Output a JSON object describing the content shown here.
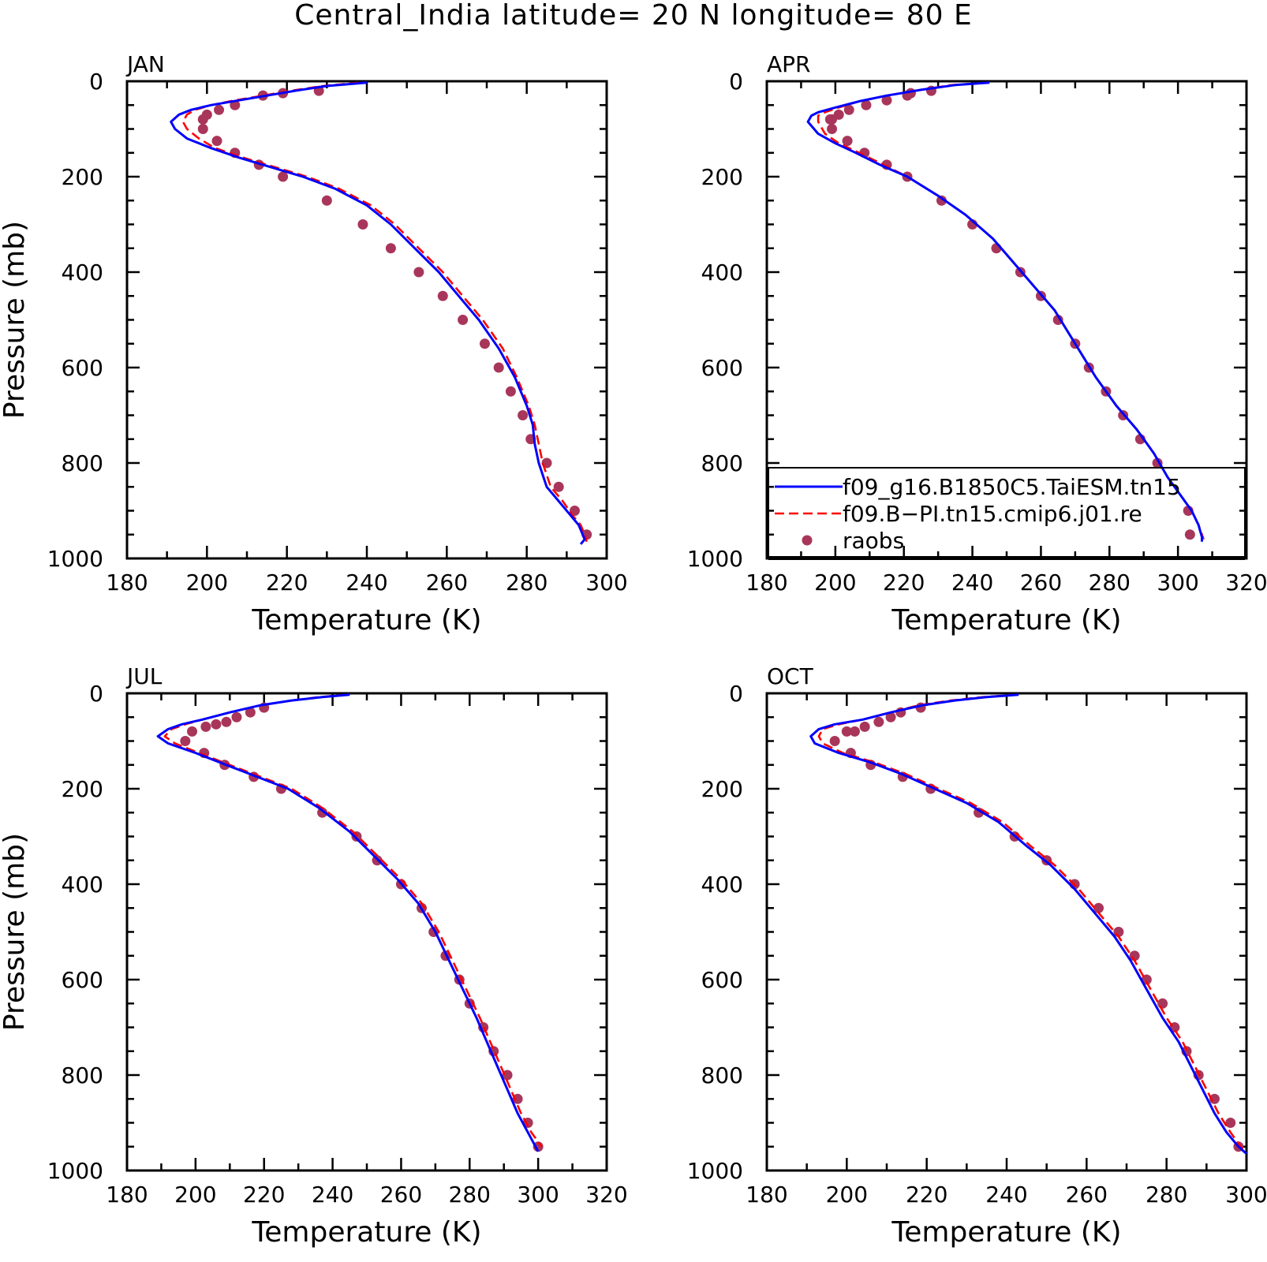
{
  "title": "Central_India  latitude= 20 N longitude= 80 E",
  "colors": {
    "model1": "#0000ff",
    "model2": "#ff0000",
    "obs": "#a8365a",
    "axis": "#000000"
  },
  "legend": {
    "entries": [
      {
        "label": "f09_g16.B1850C5.TaiESM.tn15",
        "style": "solid",
        "color": "#0000ff"
      },
      {
        "label": "f09.B−PI.tn15.cmip6.j01.re",
        "style": "dashed",
        "color": "#ff0000"
      },
      {
        "label": "raobs",
        "style": "marker",
        "color": "#a8365a"
      }
    ],
    "panel": "APR",
    "placement": "bottom-right"
  },
  "chart_data": [
    {
      "type": "line",
      "panel_label": "JAN",
      "xlabel": "Temperature (K)",
      "ylabel": "Pressure (mb)",
      "xlim": [
        180,
        300
      ],
      "ylim": [
        1000,
        0
      ],
      "xticks": [
        180,
        200,
        220,
        240,
        260,
        280,
        300
      ],
      "yticks": [
        0,
        200,
        400,
        600,
        800,
        1000
      ],
      "series": [
        {
          "name": "f09_g16.B1850C5.TaiESM.tn15",
          "style": "solid",
          "x": [
            240,
            230,
            222,
            215,
            208,
            201,
            196,
            193,
            191,
            192,
            195,
            201,
            208,
            216,
            224,
            232,
            240,
            246,
            252,
            258,
            263,
            268,
            273,
            277,
            280,
            281.5,
            282,
            283,
            285,
            288,
            291,
            293,
            294,
            294.5,
            293.5
          ],
          "y": [
            3,
            10,
            20,
            30,
            40,
            50,
            60,
            70,
            85,
            100,
            120,
            140,
            160,
            180,
            200,
            225,
            260,
            300,
            350,
            400,
            450,
            500,
            560,
            620,
            680,
            720,
            760,
            800,
            850,
            880,
            910,
            930,
            950,
            960,
            970
          ]
        },
        {
          "name": "f09.B−PI.tn15.cmip6.j01.re",
          "style": "dashed",
          "x": [
            238,
            229,
            221,
            214,
            207,
            201,
            197,
            195,
            194,
            195,
            198,
            202,
            209,
            217,
            225,
            233,
            241,
            247,
            253,
            259,
            264,
            269,
            274,
            277.5,
            280.5,
            282,
            283,
            284,
            286,
            289,
            291.5,
            293.5,
            294.5,
            295
          ],
          "y": [
            3,
            10,
            20,
            30,
            40,
            50,
            60,
            70,
            85,
            100,
            120,
            140,
            160,
            180,
            200,
            225,
            260,
            300,
            350,
            400,
            450,
            500,
            560,
            620,
            680,
            720,
            760,
            800,
            850,
            880,
            910,
            930,
            950,
            965
          ]
        },
        {
          "name": "raobs",
          "style": "marker",
          "x": [
            228,
            219,
            214,
            207,
            203,
            200,
            199,
            199,
            202.5,
            207,
            213,
            219,
            230,
            239,
            246,
            253,
            259,
            264,
            269.5,
            273,
            276,
            279,
            281,
            285,
            288,
            292,
            295
          ],
          "y": [
            20,
            25,
            30,
            50,
            60,
            70,
            80,
            100,
            125,
            150,
            175,
            200,
            250,
            300,
            350,
            400,
            450,
            500,
            550,
            600,
            650,
            700,
            750,
            800,
            850,
            900,
            950
          ]
        }
      ]
    },
    {
      "type": "line",
      "panel_label": "APR",
      "xlabel": "Temperature (K)",
      "ylabel": "",
      "xlim": [
        180,
        320
      ],
      "ylim": [
        1000,
        0
      ],
      "xticks": [
        180,
        200,
        220,
        240,
        260,
        280,
        300,
        320
      ],
      "yticks": [
        0,
        200,
        400,
        600,
        800,
        1000
      ],
      "series": [
        {
          "name": "f09_g16.B1850C5.TaiESM.tn15",
          "style": "solid",
          "x": [
            245,
            235,
            225,
            215,
            207,
            200,
            195,
            193,
            192,
            195,
            200,
            206,
            213,
            221,
            230,
            238,
            246,
            252,
            258,
            264,
            270,
            276,
            282,
            288,
            293,
            297,
            301,
            304,
            306,
            307,
            307
          ],
          "y": [
            3,
            8,
            18,
            30,
            42,
            55,
            65,
            72,
            85,
            110,
            130,
            150,
            175,
            200,
            240,
            280,
            330,
            380,
            430,
            480,
            550,
            620,
            680,
            730,
            780,
            830,
            870,
            900,
            930,
            955,
            965
          ]
        },
        {
          "name": "f09.B−PI.tn15.cmip6.j01.re",
          "style": "dashed",
          "x": [
            244,
            234,
            225,
            215,
            207,
            201,
            197,
            195,
            195,
            197,
            201,
            207,
            214,
            221,
            230,
            238,
            246,
            252,
            258,
            264,
            270,
            276,
            282,
            288,
            293,
            297,
            301,
            304,
            306,
            307.5
          ],
          "y": [
            3,
            8,
            18,
            30,
            42,
            55,
            65,
            72,
            85,
            110,
            130,
            150,
            175,
            200,
            240,
            280,
            330,
            380,
            430,
            480,
            550,
            620,
            680,
            730,
            780,
            830,
            870,
            900,
            930,
            960
          ]
        },
        {
          "name": "raobs",
          "style": "marker",
          "x": [
            228,
            222,
            221,
            215,
            209,
            204,
            201,
            199,
            198.5,
            199,
            203.5,
            208.5,
            215,
            221,
            231,
            240,
            247,
            254,
            260,
            265,
            270,
            274,
            279,
            284,
            289,
            294,
            303,
            303.5
          ],
          "y": [
            20,
            25,
            30,
            40,
            50,
            60,
            70,
            80,
            80,
            100,
            125,
            150,
            175,
            200,
            250,
            300,
            350,
            400,
            450,
            500,
            550,
            600,
            650,
            700,
            750,
            800,
            900,
            950
          ]
        }
      ]
    },
    {
      "type": "line",
      "panel_label": "JUL",
      "xlabel": "Temperature (K)",
      "ylabel": "Pressure (mb)",
      "xlim": [
        180,
        320
      ],
      "ylim": [
        1000,
        0
      ],
      "xticks": [
        180,
        200,
        220,
        240,
        260,
        280,
        300,
        320
      ],
      "yticks": [
        0,
        200,
        400,
        600,
        800,
        1000
      ],
      "series": [
        {
          "name": "f09_g16.B1850C5.TaiESM.tn15",
          "style": "solid",
          "x": [
            245,
            237,
            228,
            219,
            210,
            202,
            196,
            192,
            189,
            192,
            200,
            209,
            218,
            227,
            236,
            245,
            252,
            259,
            265,
            270,
            274,
            278,
            282,
            285,
            288,
            291,
            294,
            297,
            300
          ],
          "y": [
            3,
            8,
            15,
            25,
            40,
            55,
            65,
            75,
            90,
            105,
            125,
            150,
            175,
            200,
            240,
            290,
            340,
            390,
            440,
            500,
            560,
            620,
            680,
            730,
            780,
            830,
            880,
            920,
            960
          ]
        },
        {
          "name": "f09.B−PI.tn15.cmip6.j01.re",
          "style": "dashed",
          "x": [
            244,
            236,
            228,
            219,
            210,
            202,
            197,
            193,
            191,
            194,
            201,
            210,
            219,
            228,
            237,
            246,
            253,
            260,
            266,
            271,
            275,
            279,
            283,
            286,
            289,
            292,
            295,
            298,
            301
          ],
          "y": [
            3,
            8,
            15,
            25,
            40,
            55,
            65,
            75,
            90,
            105,
            125,
            150,
            175,
            200,
            240,
            290,
            340,
            390,
            440,
            500,
            560,
            620,
            680,
            730,
            780,
            830,
            880,
            920,
            950
          ]
        },
        {
          "name": "raobs",
          "style": "marker",
          "x": [
            220,
            216,
            212,
            209,
            206,
            203,
            199,
            197,
            202.5,
            208.5,
            217,
            225,
            237,
            247,
            253,
            260,
            266,
            269.5,
            273,
            277,
            280,
            284,
            287,
            291,
            294,
            297,
            300
          ],
          "y": [
            30,
            40,
            50,
            60,
            65,
            70,
            80,
            100,
            125,
            150,
            175,
            200,
            250,
            300,
            350,
            400,
            450,
            500,
            550,
            600,
            650,
            700,
            750,
            800,
            850,
            900,
            950
          ]
        }
      ]
    },
    {
      "type": "line",
      "panel_label": "OCT",
      "xlabel": "Temperature (K)",
      "ylabel": "",
      "xlim": [
        180,
        300
      ],
      "ylim": [
        1000,
        0
      ],
      "xticks": [
        180,
        200,
        220,
        240,
        260,
        280,
        300
      ],
      "yticks": [
        0,
        200,
        400,
        600,
        800,
        1000
      ],
      "series": [
        {
          "name": "f09_g16.B1850C5.TaiESM.tn15",
          "style": "solid",
          "x": [
            243,
            235,
            227,
            219,
            211,
            204,
            197,
            193,
            191,
            192,
            198,
            206,
            214,
            222,
            230,
            238,
            245,
            251,
            257,
            262,
            267,
            271,
            275,
            279,
            283,
            286,
            289,
            292,
            295,
            298,
            300
          ],
          "y": [
            3,
            8,
            15,
            25,
            40,
            55,
            65,
            75,
            90,
            105,
            125,
            145,
            170,
            200,
            230,
            270,
            320,
            360,
            410,
            460,
            510,
            560,
            620,
            680,
            730,
            780,
            830,
            880,
            920,
            950,
            965
          ]
        },
        {
          "name": "f09.B−PI.tn15.cmip6.j01.re",
          "style": "dashed",
          "x": [
            242,
            234,
            226,
            218,
            211,
            204,
            198,
            194,
            193,
            194,
            199,
            207,
            215,
            223,
            231,
            239,
            246,
            252,
            258,
            263,
            268,
            272,
            276,
            280,
            284,
            287,
            290,
            293,
            296,
            299
          ],
          "y": [
            3,
            8,
            15,
            25,
            40,
            55,
            65,
            75,
            90,
            105,
            125,
            145,
            170,
            200,
            230,
            270,
            320,
            360,
            410,
            460,
            510,
            560,
            620,
            680,
            730,
            780,
            830,
            880,
            920,
            955
          ]
        },
        {
          "name": "raobs",
          "style": "marker",
          "x": [
            218.5,
            213.5,
            211,
            208,
            204.5,
            202,
            200,
            197,
            201,
            206,
            214,
            221,
            233,
            242,
            250,
            257,
            263,
            268,
            272,
            275,
            279,
            282,
            285,
            288,
            292,
            296,
            298
          ],
          "y": [
            30,
            40,
            50,
            60,
            70,
            80,
            80,
            100,
            125,
            150,
            175,
            200,
            250,
            300,
            350,
            400,
            450,
            500,
            550,
            600,
            650,
            700,
            750,
            800,
            850,
            900,
            950
          ]
        }
      ]
    }
  ]
}
